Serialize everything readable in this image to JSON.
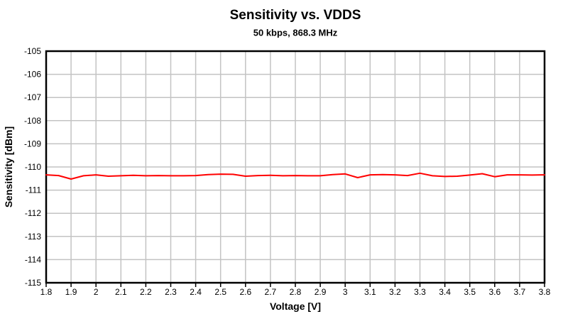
{
  "page": {
    "background": "#ffffff"
  },
  "style": {
    "grid_color": "#c3c3c3",
    "border_color": "#000000",
    "tick_color": "#000000",
    "text_color": "#000000",
    "tick_font_size": 12
  },
  "chart_data": {
    "type": "line",
    "title": "Sensitivity vs. VDDS",
    "subtitle": "50 kbps, 868.3 MHz",
    "xlabel": "Voltage [V]",
    "ylabel": "Sensitivity [dBm]",
    "xlim": [
      1.8,
      3.8
    ],
    "ylim": [
      -115,
      -105
    ],
    "grid": true,
    "legend": "none",
    "x_tick_values": [
      1.8,
      1.9,
      2.0,
      2.1,
      2.2,
      2.3,
      2.4,
      2.5,
      2.6,
      2.7,
      2.8,
      2.9,
      3.0,
      3.1,
      3.2,
      3.3,
      3.4,
      3.5,
      3.6,
      3.7,
      3.8
    ],
    "x_tick_labels": [
      "1.8",
      "1.9",
      "2",
      "2.1",
      "2.2",
      "2.3",
      "2.4",
      "2.5",
      "2.6",
      "2.7",
      "2.8",
      "2.9",
      "3",
      "3.1",
      "3.2",
      "3.3",
      "3.4",
      "3.5",
      "3.6",
      "3.7",
      "3.8"
    ],
    "y_tick_values": [
      -105,
      -106,
      -107,
      -108,
      -109,
      -110,
      -111,
      -112,
      -113,
      -114,
      -115
    ],
    "y_tick_labels": [
      "-105",
      "-106",
      "-107",
      "-108",
      "-109",
      "-110",
      "-111",
      "-112",
      "-113",
      "-114",
      "-115"
    ],
    "series": [
      {
        "name": "Sensitivity",
        "color": "#ff0000",
        "line_width": 2,
        "x": [
          1.8,
          1.85,
          1.9,
          1.95,
          2.0,
          2.05,
          2.1,
          2.15,
          2.2,
          2.25,
          2.3,
          2.35,
          2.4,
          2.45,
          2.5,
          2.55,
          2.6,
          2.65,
          2.7,
          2.75,
          2.8,
          2.85,
          2.9,
          2.95,
          3.0,
          3.05,
          3.1,
          3.15,
          3.2,
          3.25,
          3.3,
          3.35,
          3.4,
          3.45,
          3.5,
          3.55,
          3.6,
          3.65,
          3.7,
          3.75,
          3.8
        ],
        "y": [
          -110.34,
          -110.37,
          -110.52,
          -110.38,
          -110.34,
          -110.4,
          -110.38,
          -110.36,
          -110.38,
          -110.37,
          -110.38,
          -110.38,
          -110.37,
          -110.33,
          -110.31,
          -110.32,
          -110.4,
          -110.37,
          -110.36,
          -110.38,
          -110.37,
          -110.38,
          -110.38,
          -110.33,
          -110.3,
          -110.46,
          -110.34,
          -110.33,
          -110.34,
          -110.37,
          -110.27,
          -110.38,
          -110.41,
          -110.4,
          -110.35,
          -110.29,
          -110.42,
          -110.34,
          -110.34,
          -110.35,
          -110.34
        ]
      }
    ]
  }
}
